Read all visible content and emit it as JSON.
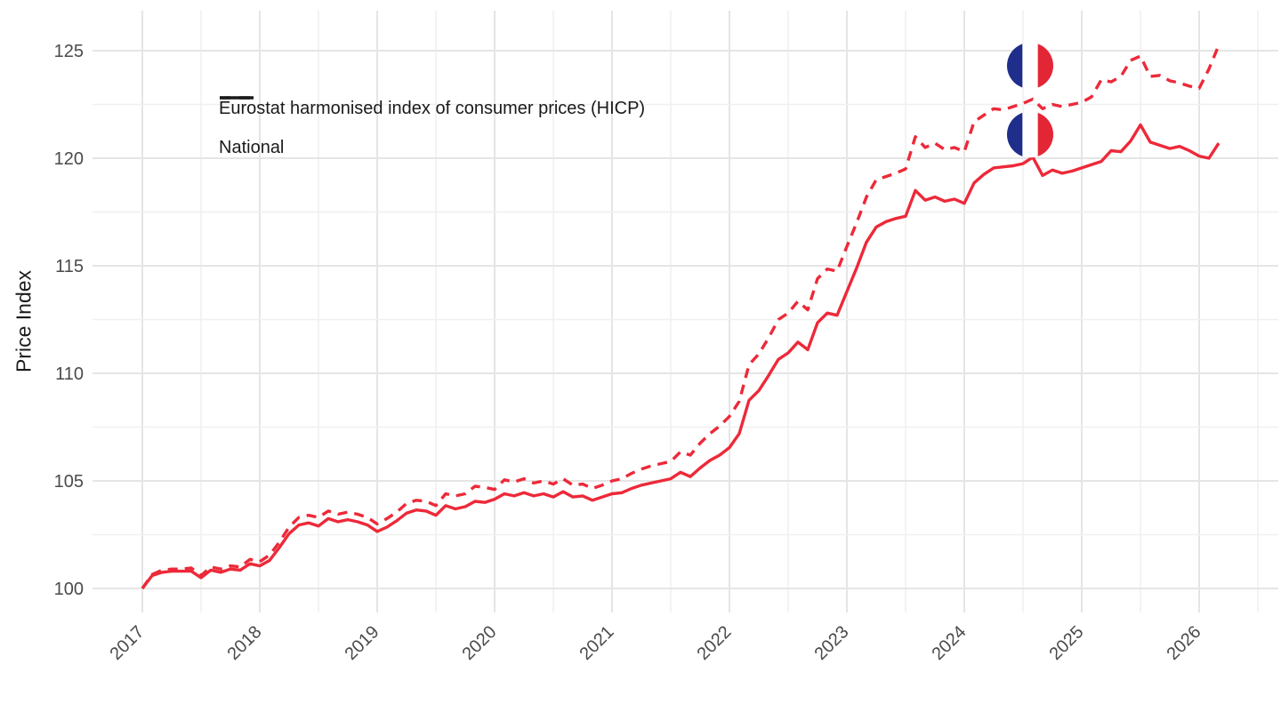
{
  "chart_data": {
    "type": "line",
    "title": "",
    "xlabel": "",
    "ylabel": "Price Index",
    "frequency": "monthly",
    "x_start": "2017-01",
    "x_end": "2026-03",
    "x_tick_labels": [
      "2017",
      "2018",
      "2019",
      "2020",
      "2021",
      "2022",
      "2023",
      "2024",
      "2025",
      "2026"
    ],
    "y_tick_labels": [
      "100",
      "105",
      "110",
      "115",
      "120",
      "125"
    ],
    "y_major_ticks": [
      100,
      105,
      110,
      115,
      120,
      125
    ],
    "y_minor_ticks": [
      102.5,
      107.5,
      112.5,
      117.5,
      122.5
    ],
    "ylim": [
      98.9,
      126.9
    ],
    "grid": true,
    "legend_position": "inside-top-left",
    "line_color": "#ED2939",
    "series": [
      {
        "name": "Eurostat harmonised index of consumer prices (HICP)",
        "line_style": "dashed",
        "color": "#ED2939",
        "values": [
          100.0,
          100.65,
          100.85,
          100.9,
          100.9,
          100.95,
          100.6,
          101.0,
          100.9,
          101.05,
          101.0,
          101.35,
          101.25,
          101.55,
          102.15,
          102.85,
          103.3,
          103.4,
          103.3,
          103.6,
          103.45,
          103.55,
          103.45,
          103.3,
          103.0,
          103.25,
          103.55,
          103.95,
          104.1,
          104.05,
          103.85,
          104.4,
          104.3,
          104.4,
          104.75,
          104.7,
          104.6,
          105.05,
          104.95,
          105.1,
          104.9,
          105.0,
          104.85,
          105.1,
          104.8,
          104.85,
          104.65,
          104.8,
          105.0,
          105.1,
          105.35,
          105.55,
          105.7,
          105.8,
          105.9,
          106.35,
          106.2,
          106.75,
          107.2,
          107.55,
          108.0,
          108.7,
          110.4,
          110.9,
          111.65,
          112.5,
          112.8,
          113.35,
          112.95,
          114.4,
          114.85,
          114.75,
          115.9,
          117.0,
          118.2,
          119.0,
          119.15,
          119.3,
          119.5,
          121.0,
          120.5,
          120.7,
          120.4,
          120.5,
          120.3,
          121.7,
          122.0,
          122.3,
          122.25,
          122.4,
          122.55,
          122.75,
          122.3,
          122.5,
          122.4,
          122.5,
          122.6,
          122.85,
          123.65,
          123.55,
          123.8,
          124.55,
          124.75,
          123.8,
          123.85,
          123.6,
          123.5,
          123.35,
          123.25,
          124.15,
          125.25
        ]
      },
      {
        "name": "National",
        "line_style": "solid",
        "color": "#ED2939",
        "values": [
          100.0,
          100.6,
          100.75,
          100.8,
          100.8,
          100.8,
          100.5,
          100.85,
          100.75,
          100.9,
          100.85,
          101.15,
          101.05,
          101.3,
          101.9,
          102.55,
          102.95,
          103.05,
          102.9,
          103.25,
          103.1,
          103.2,
          103.1,
          102.95,
          102.65,
          102.85,
          103.15,
          103.5,
          103.65,
          103.6,
          103.4,
          103.85,
          103.7,
          103.8,
          104.05,
          104.0,
          104.15,
          104.4,
          104.3,
          104.45,
          104.3,
          104.4,
          104.25,
          104.5,
          104.25,
          104.3,
          104.1,
          104.25,
          104.4,
          104.45,
          104.65,
          104.8,
          104.9,
          105.0,
          105.1,
          105.4,
          105.2,
          105.6,
          105.95,
          106.2,
          106.55,
          107.2,
          108.75,
          109.2,
          109.9,
          110.65,
          110.95,
          111.45,
          111.1,
          112.35,
          112.8,
          112.7,
          113.8,
          114.9,
          116.1,
          116.8,
          117.05,
          117.2,
          117.3,
          118.5,
          118.05,
          118.2,
          118.0,
          118.1,
          117.9,
          118.85,
          119.25,
          119.55,
          119.6,
          119.65,
          119.75,
          120.05,
          119.2,
          119.45,
          119.3,
          119.4,
          119.55,
          119.7,
          119.85,
          120.35,
          120.3,
          120.8,
          121.55,
          120.75,
          120.6,
          120.45,
          120.55,
          120.35,
          120.1,
          120.0,
          120.7
        ]
      }
    ],
    "annotations": [
      {
        "type": "country-flag",
        "country": "France",
        "series": "Eurostat harmonised index of consumer prices (HICP)",
        "x": "2024-08",
        "value": 124.3
      },
      {
        "type": "country-flag",
        "country": "France",
        "series": "National",
        "x": "2024-08",
        "value": 121.1
      }
    ]
  },
  "legend": {
    "items": [
      {
        "label": "Eurostat harmonised index of consumer prices (HICP)",
        "key_style": "dashed"
      },
      {
        "label": "National",
        "key_style": "solid"
      }
    ]
  },
  "axes": {
    "y_title": "Price Index"
  },
  "colors": {
    "series_red": "#ED2939",
    "flag_blue": "#1F2E8A",
    "flag_white": "#FFFFFF",
    "flag_red": "#E32636",
    "grid_major": "#E5E5E5",
    "grid_minor": "#F0F0F0",
    "tick_label": "#4A4A4A",
    "text": "#1A1A1A",
    "legend_key": "#1A1A1A"
  }
}
